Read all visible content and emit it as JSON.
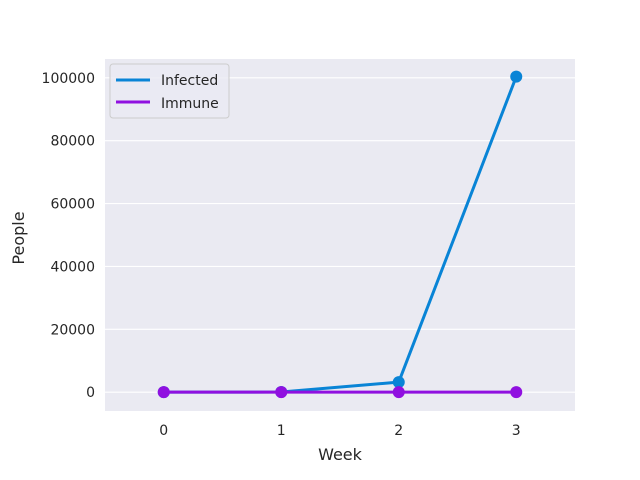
{
  "chart_data": {
    "type": "line",
    "title": "",
    "xlabel": "Week",
    "ylabel": "People",
    "x": [
      0,
      1,
      2,
      3
    ],
    "x_tick_labels": [
      "0",
      "1",
      "2",
      "3"
    ],
    "y_ticks": [
      0,
      20000,
      40000,
      60000,
      80000,
      100000
    ],
    "y_tick_labels": [
      "0",
      "20000",
      "40000",
      "60000",
      "80000",
      "100000"
    ],
    "ylim": [
      -6000,
      106000
    ],
    "xlim": [
      -0.5,
      3.5
    ],
    "grid": true,
    "legend_position": "top-left",
    "series": [
      {
        "name": "Infected",
        "color": "#0984d6",
        "values": [
          1,
          32,
          3200,
          100400
        ]
      },
      {
        "name": "Immune",
        "color": "#9010e0",
        "values": [
          0,
          0,
          0,
          0
        ]
      }
    ],
    "colors": {
      "plot_background": "#eaeaf2",
      "grid": "#ffffff"
    }
  }
}
